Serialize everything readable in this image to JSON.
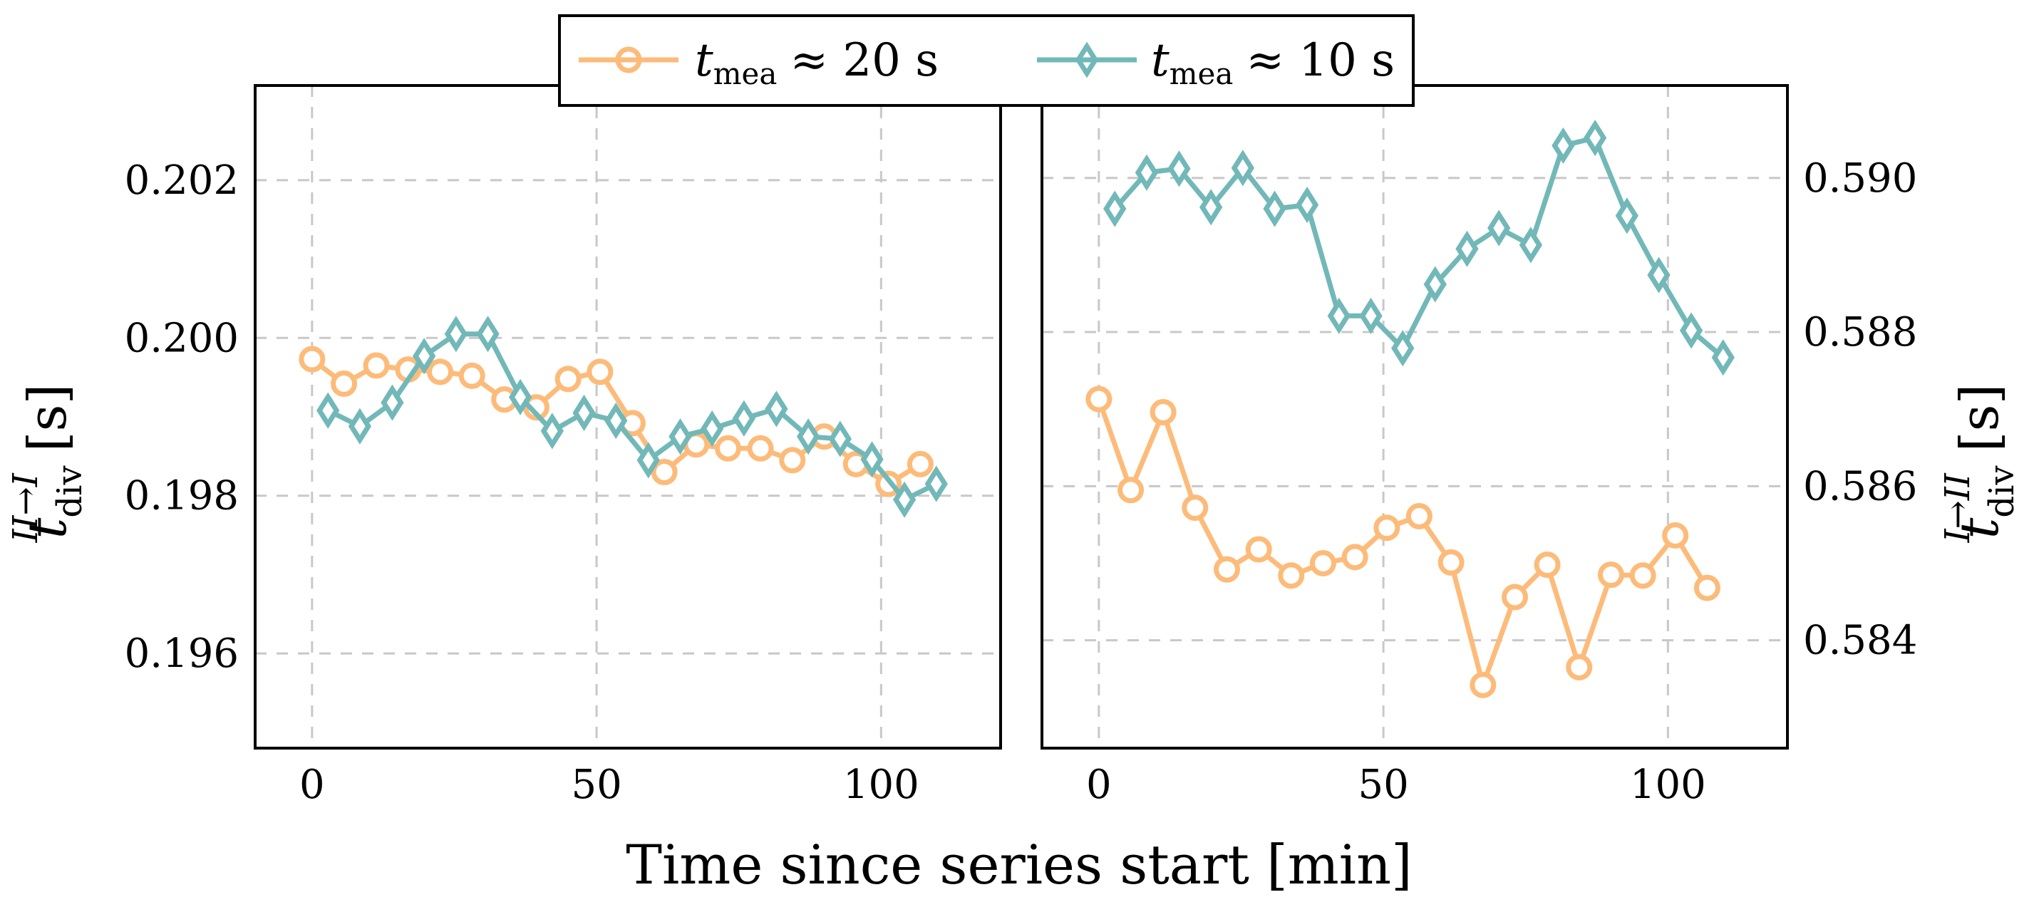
{
  "legend": {
    "entries": [
      {
        "symbol": "t",
        "sub": "mea",
        "rest": "≈ 20 s",
        "color": "#FDBB7A",
        "marker": "circle"
      },
      {
        "symbol": "t",
        "sub": "mea",
        "rest": "≈ 10 s",
        "color": "#72B8B8",
        "marker": "diamond"
      }
    ]
  },
  "xlabel": "Time since series start [min]",
  "left_ylabel": {
    "symbol": "t",
    "sub": "div",
    "sup": "II→I",
    "unit": "[s]"
  },
  "right_ylabel": {
    "symbol": "t",
    "sub": "div",
    "sup": "I→II",
    "unit": "[s]"
  },
  "chart_data": [
    {
      "type": "line",
      "panel": "left",
      "xlim": [
        -10,
        121
      ],
      "ylim": [
        0.1948,
        0.2032
      ],
      "xticks": [
        0,
        50,
        100
      ],
      "yticks": [
        0.196,
        0.198,
        0.2,
        0.202
      ],
      "ytick_labels": [
        "0.196",
        "0.198",
        "0.200",
        "0.202"
      ],
      "grid": true,
      "series": [
        {
          "name": "t_mea ≈ 20 s",
          "color": "#FDBB7A",
          "marker": "circle",
          "x": [
            0,
            5.6,
            11.3,
            16.9,
            22.5,
            28.1,
            33.8,
            39.4,
            45,
            50.6,
            56.3,
            61.9,
            67.5,
            73.1,
            78.8,
            84.4,
            90,
            95.6,
            101.3,
            106.9
          ],
          "y": [
            0.19973,
            0.19942,
            0.19965,
            0.1996,
            0.19957,
            0.19952,
            0.19922,
            0.19912,
            0.19948,
            0.19957,
            0.19892,
            0.1983,
            0.19865,
            0.1986,
            0.1986,
            0.19845,
            0.19875,
            0.1984,
            0.19815,
            0.1984
          ]
        },
        {
          "name": "t_mea ≈ 10 s",
          "color": "#72B8B8",
          "marker": "diamond",
          "x": [
            2.8,
            8.4,
            14.1,
            19.7,
            25.3,
            30.9,
            36.6,
            42.2,
            47.8,
            53.4,
            59.1,
            64.7,
            70.3,
            75.9,
            81.6,
            87.2,
            92.8,
            98.4,
            104.1,
            109.7
          ],
          "y": [
            0.19908,
            0.19888,
            0.19918,
            0.19977,
            0.20005,
            0.20005,
            0.19925,
            0.19882,
            0.19905,
            0.19895,
            0.19845,
            0.19875,
            0.19885,
            0.19898,
            0.1991,
            0.19875,
            0.19872,
            0.19846,
            0.19795,
            0.19815
          ]
        }
      ]
    },
    {
      "type": "line",
      "panel": "right",
      "xlim": [
        -10,
        121
      ],
      "ylim": [
        0.5826,
        0.5912
      ],
      "xticks": [
        0,
        50,
        100
      ],
      "yticks": [
        0.584,
        0.586,
        0.588,
        0.59
      ],
      "ytick_labels": [
        "0.584",
        "0.586",
        "0.588",
        "0.590"
      ],
      "grid": true,
      "series": [
        {
          "name": "t_mea ≈ 20 s",
          "color": "#FDBB7A",
          "marker": "circle",
          "x": [
            0,
            5.6,
            11.3,
            16.9,
            22.5,
            28.1,
            33.8,
            39.4,
            45,
            50.6,
            56.3,
            61.9,
            67.5,
            73.1,
            78.8,
            84.4,
            90,
            95.6,
            101.3,
            106.9
          ],
          "y": [
            0.58713,
            0.58595,
            0.58696,
            0.58572,
            0.58492,
            0.58518,
            0.58484,
            0.585,
            0.58508,
            0.58546,
            0.58561,
            0.58501,
            0.58342,
            0.58456,
            0.58498,
            0.58365,
            0.58485,
            0.58484,
            0.58536,
            0.58468
          ]
        },
        {
          "name": "t_mea ≈ 10 s",
          "color": "#72B8B8",
          "marker": "diamond",
          "x": [
            2.8,
            8.4,
            14.1,
            19.7,
            25.3,
            30.9,
            36.6,
            42.2,
            47.8,
            53.4,
            59.1,
            64.7,
            70.3,
            75.9,
            81.6,
            87.2,
            92.8,
            98.4,
            104.1,
            109.7
          ],
          "y": [
            0.5896,
            0.59007,
            0.59012,
            0.58962,
            0.59013,
            0.5896,
            0.58965,
            0.58821,
            0.58821,
            0.58779,
            0.58862,
            0.58908,
            0.58935,
            0.58913,
            0.59042,
            0.59052,
            0.58951,
            0.58874,
            0.58802,
            0.58767
          ]
        }
      ]
    }
  ]
}
